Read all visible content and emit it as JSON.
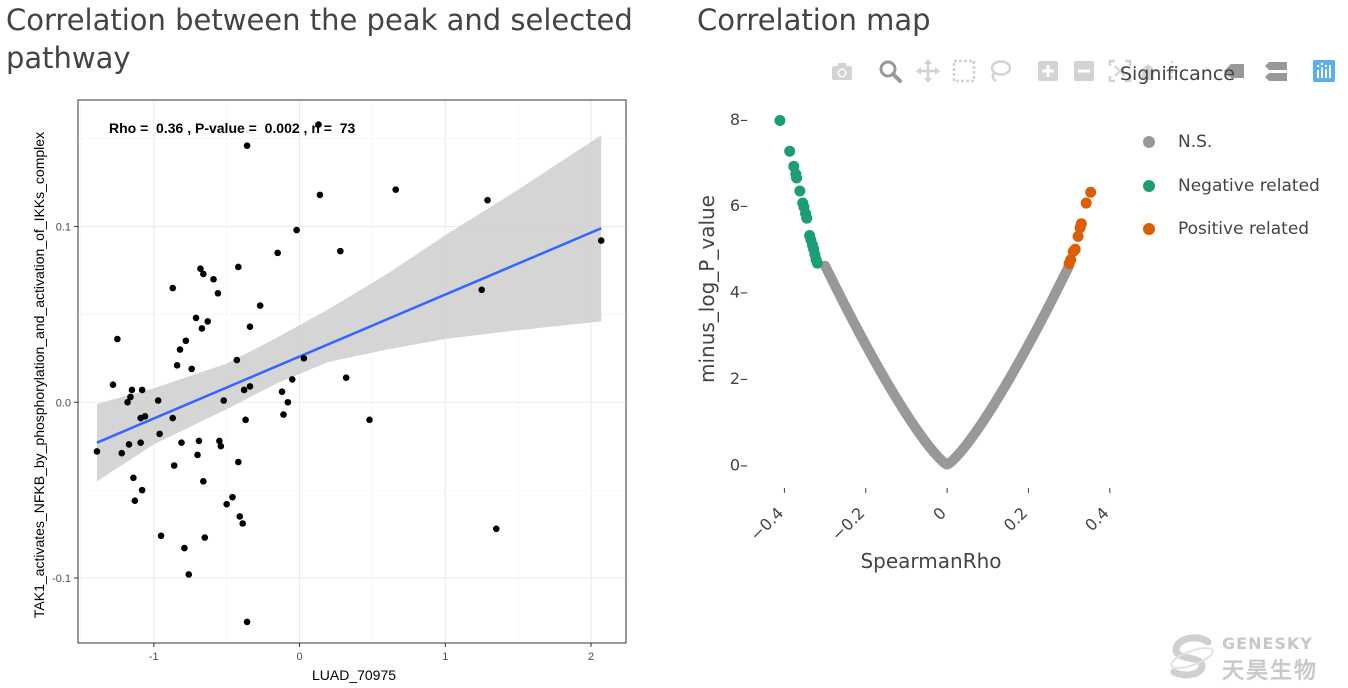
{
  "titles": {
    "left": "Correlation between the peak and selected pathway",
    "right": "Correlation map"
  },
  "modebar": [
    {
      "name": "camera-icon",
      "label": "Download plot as a png"
    },
    {
      "name": "zoom-icon",
      "label": "Zoom"
    },
    {
      "name": "pan-icon",
      "label": "Pan"
    },
    {
      "name": "box-select-icon",
      "label": "Box Select"
    },
    {
      "name": "lasso-icon",
      "label": "Lasso Select"
    },
    {
      "name": "zoom-in-icon",
      "label": "Zoom in"
    },
    {
      "name": "zoom-out-icon",
      "label": "Zoom out"
    },
    {
      "name": "autoscale-icon",
      "label": "Autoscale"
    },
    {
      "name": "reset-axes-icon",
      "label": "Reset axes"
    },
    {
      "name": "spike-lines-icon",
      "label": "Toggle Spike Lines"
    },
    {
      "name": "hover-closest-icon",
      "label": "Show closest data on hover"
    },
    {
      "name": "hover-compare-icon",
      "label": "Compare data on hover"
    },
    {
      "name": "plotly-logo-icon",
      "label": "Produced with Plotly"
    }
  ],
  "colors": {
    "ns": "#999999",
    "negative": "#1b9e77",
    "positive": "#d95f02",
    "fit_line": "#3366ff",
    "ci_band": "#d3d3d3"
  },
  "watermark": {
    "en": "GENESKY",
    "cn": "天昊生物"
  },
  "chart_data": [
    {
      "type": "scatter",
      "title": "Correlation between the peak and selected pathway",
      "annotation": "Rho =  0.36 , P-value =  0.002 , n =  73",
      "xlabel": "LUAD_70975",
      "ylabel": "TAK1_activates_NFKB_by_phosphorylation_and_activation_of_IKKs_complex",
      "xlim": [
        -1.52,
        2.24
      ],
      "ylim": [
        -0.137,
        0.172
      ],
      "xticks": [
        -1,
        0,
        1,
        2
      ],
      "yticks": [
        -0.1,
        0.0,
        0.1
      ],
      "xtick_labels": [
        "-1",
        "0",
        "1",
        "2"
      ],
      "ytick_labels": [
        "-0.1",
        "0.0",
        "0.1"
      ],
      "grid": true,
      "fit": {
        "x": [
          -1.39,
          2.07
        ],
        "y": [
          -0.023,
          0.099
        ]
      },
      "ci_band": {
        "x": [
          -1.39,
          -1.0,
          -0.5,
          -0.15,
          0.2,
          0.6,
          1.0,
          1.5,
          2.07
        ],
        "lower": [
          -0.045,
          -0.024,
          -0.004,
          0.011,
          0.023,
          0.03,
          0.036,
          0.041,
          0.046
        ],
        "upper": [
          -0.001,
          0.008,
          0.022,
          0.037,
          0.053,
          0.073,
          0.095,
          0.121,
          0.152
        ]
      },
      "points": [
        [
          -1.39,
          -0.028
        ],
        [
          -1.28,
          0.01
        ],
        [
          -1.25,
          0.036
        ],
        [
          -1.22,
          -0.029
        ],
        [
          -1.18,
          0.0
        ],
        [
          -1.17,
          -0.024
        ],
        [
          -1.16,
          0.003
        ],
        [
          -1.15,
          0.007
        ],
        [
          -1.14,
          -0.043
        ],
        [
          -1.13,
          -0.056
        ],
        [
          -1.09,
          -0.009
        ],
        [
          -1.09,
          -0.023
        ],
        [
          -1.08,
          0.007
        ],
        [
          -1.08,
          -0.05
        ],
        [
          -1.06,
          -0.008
        ],
        [
          -0.97,
          0.001
        ],
        [
          -0.96,
          -0.018
        ],
        [
          -0.95,
          -0.076
        ],
        [
          -0.87,
          0.065
        ],
        [
          -0.87,
          -0.009
        ],
        [
          -0.86,
          -0.036
        ],
        [
          -0.84,
          0.021
        ],
        [
          -0.82,
          0.03
        ],
        [
          -0.81,
          -0.023
        ],
        [
          -0.79,
          -0.083
        ],
        [
          -0.78,
          0.035
        ],
        [
          -0.76,
          -0.098
        ],
        [
          -0.74,
          0.019
        ],
        [
          -0.71,
          0.048
        ],
        [
          -0.7,
          -0.03
        ],
        [
          -0.69,
          -0.022
        ],
        [
          -0.68,
          0.076
        ],
        [
          -0.67,
          0.042
        ],
        [
          -0.66,
          0.073
        ],
        [
          -0.66,
          -0.045
        ],
        [
          -0.65,
          -0.077
        ],
        [
          -0.63,
          0.046
        ],
        [
          -0.59,
          0.07
        ],
        [
          -0.56,
          0.062
        ],
        [
          -0.55,
          -0.022
        ],
        [
          -0.54,
          -0.025
        ],
        [
          -0.52,
          0.001
        ],
        [
          -0.5,
          -0.058
        ],
        [
          -0.46,
          -0.054
        ],
        [
          -0.43,
          0.024
        ],
        [
          -0.42,
          0.077
        ],
        [
          -0.42,
          -0.034
        ],
        [
          -0.41,
          -0.065
        ],
        [
          -0.39,
          -0.069
        ],
        [
          -0.38,
          0.007
        ],
        [
          -0.37,
          -0.01
        ],
        [
          -0.36,
          0.146
        ],
        [
          -0.36,
          -0.125
        ],
        [
          -0.34,
          0.043
        ],
        [
          -0.34,
          0.009
        ],
        [
          -0.27,
          0.055
        ],
        [
          -0.15,
          0.085
        ],
        [
          -0.12,
          0.006
        ],
        [
          -0.11,
          -0.007
        ],
        [
          -0.08,
          0.0
        ],
        [
          -0.05,
          0.013
        ],
        [
          -0.02,
          0.098
        ],
        [
          0.03,
          0.025
        ],
        [
          0.13,
          0.158
        ],
        [
          0.14,
          0.118
        ],
        [
          0.28,
          0.086
        ],
        [
          0.48,
          -0.01
        ],
        [
          0.66,
          0.121
        ],
        [
          1.25,
          0.064
        ],
        [
          1.29,
          0.115
        ],
        [
          1.35,
          -0.072
        ],
        [
          2.07,
          0.092
        ],
        [
          0.32,
          0.014
        ]
      ]
    },
    {
      "type": "scatter",
      "title": "Correlation map",
      "xlabel": "SpearmanRho",
      "ylabel": "minus_log_P_value",
      "xlim": [
        -0.46,
        0.43
      ],
      "ylim": [
        -0.45,
        8.55
      ],
      "xticks": [
        -0.4,
        -0.2,
        0,
        0.2,
        0.4
      ],
      "yticks": [
        0,
        2,
        4,
        6,
        8
      ],
      "xtick_labels": [
        "−0.4",
        "−0.2",
        "0",
        "0.2",
        "0.4"
      ],
      "ytick_labels": [
        "0",
        "2",
        "4",
        "6",
        "8"
      ],
      "grid": false,
      "legend_title": "Significance",
      "legend_position": "right",
      "series": [
        {
          "name": "N.S.",
          "curve": {
            "rho_from": -0.3,
            "rho_to": 0.3,
            "shape": "minus_log_P_value rises from 0 at rho = 0 to about 4.6 at |rho| = 0.3, drawn as a dense band"
          }
        },
        {
          "name": "Negative related",
          "points": [
            [
              -0.411,
              7.96
            ],
            [
              -0.387,
              7.25
            ],
            [
              -0.377,
              6.9
            ],
            [
              -0.372,
              6.72
            ],
            [
              -0.37,
              6.63
            ],
            [
              -0.362,
              6.33
            ],
            [
              -0.355,
              6.05
            ],
            [
              -0.352,
              5.96
            ],
            [
              -0.348,
              5.81
            ],
            [
              -0.345,
              5.7
            ],
            [
              -0.338,
              5.3
            ],
            [
              -0.335,
              5.2
            ],
            [
              -0.331,
              5.08
            ],
            [
              -0.328,
              4.98
            ],
            [
              -0.325,
              4.86
            ],
            [
              -0.322,
              4.74
            ],
            [
              -0.319,
              4.66
            ]
          ]
        },
        {
          "name": "Positive related",
          "points": [
            [
              0.3,
              4.65
            ],
            [
              0.304,
              4.74
            ],
            [
              0.31,
              4.93
            ],
            [
              0.315,
              4.98
            ],
            [
              0.322,
              5.28
            ],
            [
              0.327,
              5.48
            ],
            [
              0.33,
              5.57
            ],
            [
              0.342,
              6.05
            ],
            [
              0.353,
              6.3
            ]
          ]
        }
      ]
    }
  ]
}
